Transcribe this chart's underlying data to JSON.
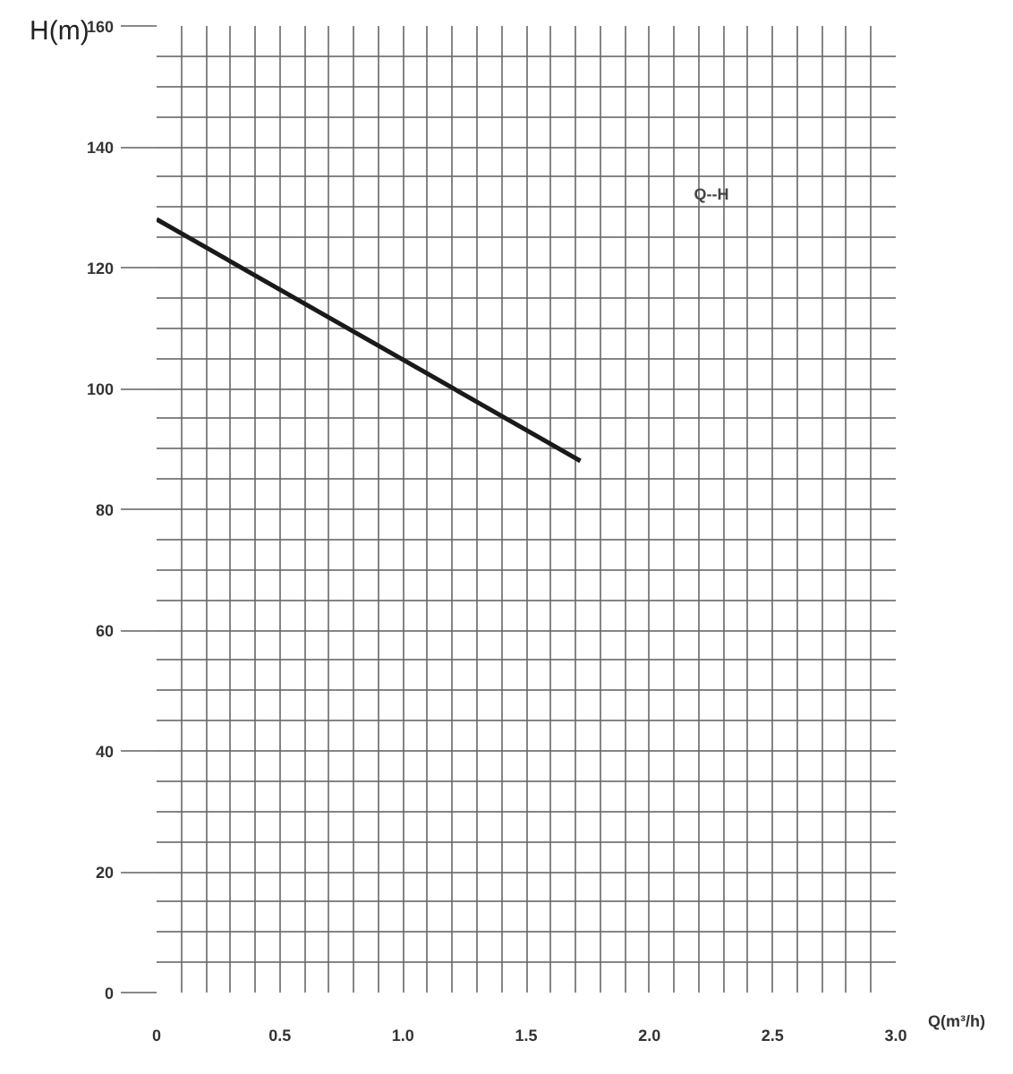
{
  "chart_data": {
    "type": "line",
    "xlabel": "Q(m³/h)",
    "ylabel": "H(m)",
    "x": [
      0,
      1.72
    ],
    "series": [
      {
        "color": "#1a1a1a",
        "values": [
          128,
          88
        ]
      }
    ],
    "xlim": [
      0,
      3.0
    ],
    "ylim": [
      0,
      160
    ],
    "xticks": [
      0,
      0.5,
      {
        "value": 1,
        "label": "1.0"
      },
      1.5,
      {
        "value": 2,
        "label": "2.0"
      },
      2.5,
      {
        "value": 3,
        "label": "3.0"
      }
    ],
    "yticks": [
      0,
      20,
      40,
      60,
      80,
      100,
      120,
      140,
      160
    ],
    "grid": true,
    "marker": "none",
    "line_style": "solid",
    "annotations": [
      "Q--H"
    ]
  }
}
